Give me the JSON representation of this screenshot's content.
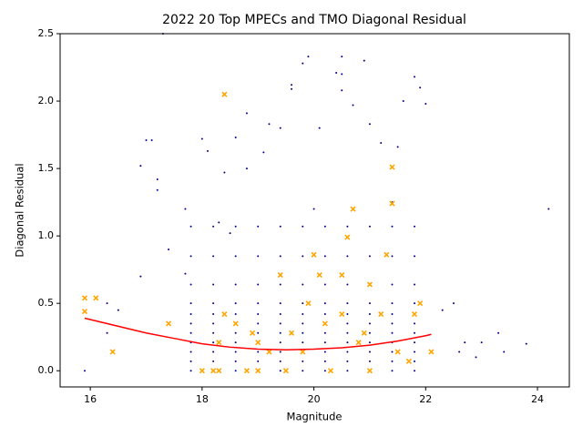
{
  "chart_data": {
    "type": "scatter",
    "title": "2022 20 Top MPECs and TMO Diagonal Residual",
    "x_label": "Magnitude",
    "y_label": "Diagonal Residual",
    "xlim": [
      15.46,
      24.57
    ],
    "ylim": [
      -0.12,
      2.5
    ],
    "xticks": [
      16,
      18,
      20,
      22,
      24
    ],
    "yticks": [
      {
        "value": 0,
        "label": "0.0"
      },
      0.5,
      {
        "value": 1,
        "label": "1.0"
      },
      1.5,
      {
        "value": 2,
        "label": "2.0"
      },
      2.5
    ],
    "grid": false,
    "series": [
      {
        "color": "#00008b",
        "marker": "dot",
        "x": [
          17.8,
          18.2,
          18.6,
          19.0,
          19.4,
          19.8,
          20.2,
          20.6,
          21.0,
          21.4,
          21.8,
          17.8,
          18.2,
          18.6,
          19.0,
          19.4,
          19.8,
          20.2,
          20.6,
          21.0,
          21.4,
          21.8,
          17.8,
          18.2,
          18.6,
          19.0,
          19.4,
          19.8,
          20.2,
          20.6,
          21.0,
          21.4,
          21.8,
          17.8,
          18.2,
          18.6,
          19.0,
          19.4,
          19.8,
          20.2,
          20.6,
          21.0,
          21.4,
          21.8,
          17.8,
          18.2,
          18.6,
          19.0,
          19.4,
          19.8,
          20.2,
          20.6,
          21.0,
          21.4,
          21.8,
          17.8,
          18.2,
          18.6,
          19.0,
          19.4,
          19.8,
          20.2,
          20.6,
          21.0,
          21.4,
          21.8,
          17.8,
          18.2,
          18.6,
          19.0,
          19.4,
          19.8,
          20.2,
          20.6,
          21.0,
          21.4,
          21.8,
          17.8,
          18.2,
          18.6,
          19.0,
          19.4,
          19.8,
          20.2,
          20.6,
          21.0,
          21.4,
          21.8,
          17.8,
          18.2,
          18.6,
          19.0,
          19.4,
          19.8,
          20.2,
          20.6,
          21.0,
          21.4,
          21.8,
          17.8,
          18.2,
          18.6,
          19.0,
          19.4,
          19.8,
          20.2,
          20.6,
          21.0,
          21.4,
          21.8,
          17.8,
          18.2,
          18.6,
          19.0,
          19.4,
          19.8,
          20.2,
          20.6,
          21.0,
          21.4,
          21.8,
          15.9,
          16.3,
          16.3,
          16.5,
          16.9,
          16.9,
          17.0,
          17.1,
          17.2,
          17.2,
          17.3,
          17.4,
          17.7,
          17.7,
          18.0,
          18.1,
          18.3,
          18.4,
          18.5,
          18.6,
          18.8,
          18.8,
          19.1,
          19.2,
          19.4,
          19.6,
          19.6,
          19.8,
          19.9,
          20.0,
          20.1,
          20.4,
          20.5,
          20.5,
          20.5,
          20.7,
          20.9,
          21.0,
          21.2,
          21.4,
          21.5,
          21.6,
          21.8,
          21.9,
          22.0,
          22.3,
          22.5,
          22.7,
          23.0,
          23.3,
          23.8,
          24.2,
          23.4,
          22.9,
          22.6
        ],
        "y": [
          0,
          0,
          0,
          0,
          0,
          0,
          0,
          0,
          0,
          0,
          0,
          0.07,
          0.07,
          0.07,
          0.07,
          0.07,
          0.07,
          0.07,
          0.07,
          0.07,
          0.07,
          0.07,
          0.14,
          0.14,
          0.14,
          0.14,
          0.14,
          0.14,
          0.14,
          0.14,
          0.14,
          0.14,
          0.14,
          0.21,
          0.21,
          0.21,
          0.21,
          0.21,
          0.21,
          0.21,
          0.21,
          0.21,
          0.21,
          0.21,
          0.28,
          0.28,
          0.28,
          0.28,
          0.28,
          0.28,
          0.28,
          0.28,
          0.28,
          0.28,
          0.28,
          0.35,
          0.35,
          0.35,
          0.35,
          0.35,
          0.35,
          0.35,
          0.35,
          0.35,
          0.35,
          0.35,
          0.42,
          0.42,
          0.42,
          0.42,
          0.42,
          0.42,
          0.42,
          0.42,
          0.42,
          0.42,
          0.42,
          0.5,
          0.5,
          0.5,
          0.5,
          0.5,
          0.5,
          0.5,
          0.5,
          0.5,
          0.5,
          0.5,
          0.64,
          0.64,
          0.64,
          0.64,
          0.64,
          0.64,
          0.64,
          0.64,
          0.64,
          0.64,
          0.64,
          0.85,
          0.85,
          0.85,
          0.85,
          0.85,
          0.85,
          0.85,
          0.85,
          0.85,
          0.85,
          0.85,
          1.07,
          1.07,
          1.07,
          1.07,
          1.07,
          1.07,
          1.07,
          1.07,
          1.07,
          1.07,
          1.07,
          0,
          0.5,
          0.28,
          0.45,
          0.7,
          1.52,
          1.71,
          1.71,
          1.42,
          1.34,
          2.5,
          0.9,
          0.72,
          1.2,
          1.72,
          1.63,
          1.1,
          1.47,
          1.02,
          1.73,
          1.91,
          1.5,
          1.62,
          1.83,
          1.8,
          2.12,
          2.09,
          2.28,
          2.33,
          1.2,
          1.8,
          2.21,
          2.33,
          2.2,
          2.08,
          1.97,
          2.3,
          1.83,
          1.69,
          1.25,
          1.66,
          2.0,
          2.18,
          2.1,
          1.98,
          0.45,
          0.5,
          0.21,
          0.21,
          0.28,
          0.2,
          1.2,
          0.14,
          0.1,
          0.14
        ]
      },
      {
        "color": "#ffa500",
        "marker": "x",
        "x": [
          15.9,
          15.9,
          16.1,
          16.4,
          17.4,
          18.0,
          18.2,
          18.3,
          18.3,
          18.4,
          18.4,
          18.6,
          18.8,
          18.9,
          19.0,
          19.2,
          19.4,
          19.5,
          19.6,
          19.8,
          19.9,
          20.0,
          20.1,
          20.2,
          20.3,
          20.5,
          20.5,
          20.6,
          20.7,
          20.8,
          20.9,
          21.0,
          21.2,
          21.3,
          21.4,
          21.4,
          21.5,
          21.7,
          21.8,
          21.9,
          22.1,
          21.0,
          19.0
        ],
        "y": [
          0.54,
          0.44,
          0.54,
          0.14,
          0.35,
          0,
          0,
          0,
          0.21,
          2.05,
          0.42,
          0.35,
          0,
          0.28,
          0.21,
          0.14,
          0.71,
          0,
          0.28,
          0.14,
          0.5,
          0.86,
          0.71,
          0.35,
          0,
          0.42,
          0.71,
          0.99,
          1.2,
          0.21,
          0.28,
          0.64,
          0.42,
          0.86,
          1.51,
          1.24,
          0.14,
          0.07,
          0.42,
          0.5,
          0.14,
          0,
          0
        ]
      },
      {
        "color": "#ff0000",
        "marker": "line",
        "x": [
          15.9,
          16.5,
          17,
          17.5,
          18,
          18.5,
          19,
          19.5,
          20,
          20.5,
          21,
          21.5,
          22,
          22.1
        ],
        "y": [
          0.39,
          0.33,
          0.28,
          0.24,
          0.2,
          0.175,
          0.16,
          0.155,
          0.16,
          0.17,
          0.19,
          0.22,
          0.26,
          0.27
        ]
      }
    ]
  }
}
